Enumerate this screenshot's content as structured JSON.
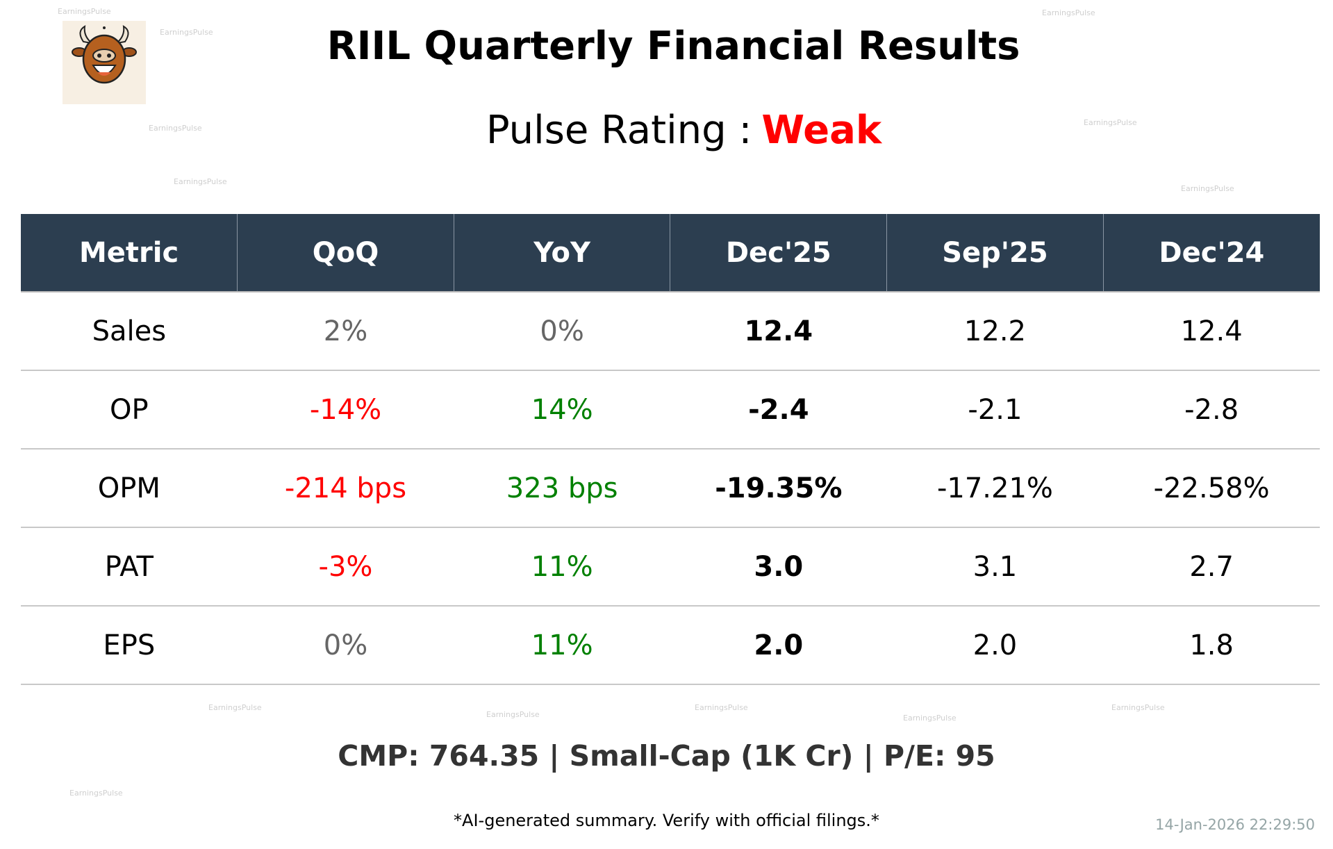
{
  "title": "RIIL Quarterly Financial Results",
  "rating": {
    "label": "Pulse Rating :",
    "value": "Weak",
    "color": "#ff0000"
  },
  "logo": {
    "text": "EARNINGS PULSE",
    "icon": "bull-mascot-logo"
  },
  "watermark": "EarningsPulse",
  "table": {
    "headers": [
      "Metric",
      "QoQ",
      "YoY",
      "Dec'25",
      "Sep'25",
      "Dec'24"
    ],
    "rows": [
      {
        "metric": "Sales",
        "qoq": "2%",
        "qoq_color": "#666666",
        "yoy": "0%",
        "yoy_color": "#666666",
        "cur": "12.4",
        "prev": "12.2",
        "yago": "12.4"
      },
      {
        "metric": "OP",
        "qoq": "-14%",
        "qoq_color": "#ff0000",
        "yoy": "14%",
        "yoy_color": "#008000",
        "cur": "-2.4",
        "prev": "-2.1",
        "yago": "-2.8"
      },
      {
        "metric": "OPM",
        "qoq": "-214 bps",
        "qoq_color": "#ff0000",
        "yoy": "323 bps",
        "yoy_color": "#008000",
        "cur": "-19.35%",
        "prev": "-17.21%",
        "yago": "-22.58%"
      },
      {
        "metric": "PAT",
        "qoq": "-3%",
        "qoq_color": "#ff0000",
        "yoy": "11%",
        "yoy_color": "#008000",
        "cur": "3.0",
        "prev": "3.1",
        "yago": "2.7"
      },
      {
        "metric": "EPS",
        "qoq": "0%",
        "qoq_color": "#666666",
        "yoy": "11%",
        "yoy_color": "#008000",
        "cur": "2.0",
        "prev": "2.0",
        "yago": "1.8"
      }
    ]
  },
  "summary": "CMP: 764.35 | Small-Cap (1K Cr) | P/E: 95",
  "disclaimer": "*AI-generated summary. Verify with official filings.*",
  "timestamp": "14-Jan-2026 22:29:50",
  "colors": {
    "header_bg": "#2c3e50",
    "negative": "#ff0000",
    "positive": "#008000",
    "neutral": "#666666"
  }
}
